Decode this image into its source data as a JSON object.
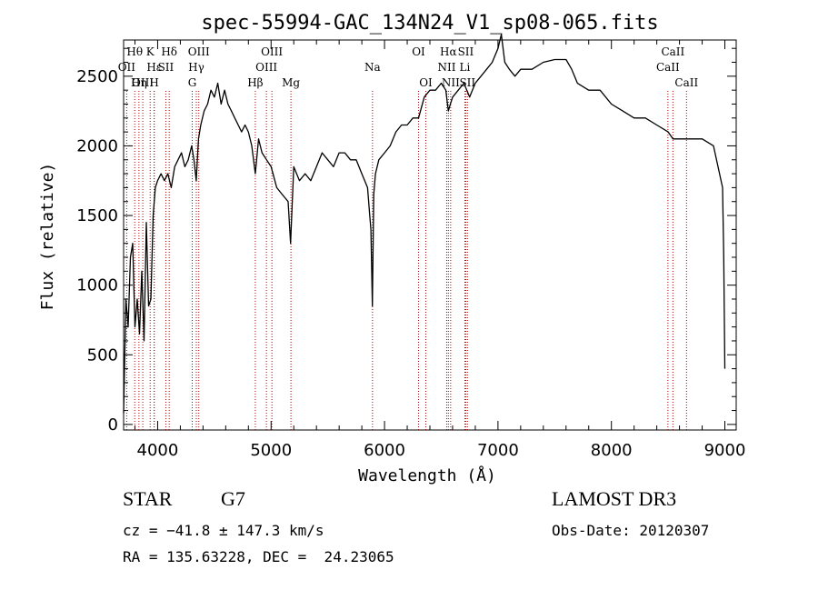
{
  "info": {
    "object_class": "STAR",
    "subclass": "G7",
    "survey": "LAMOST DR3",
    "redshift_line": "cz = −41.8 ± 147.3 km/s",
    "obs_date_line": "Obs-Date: 20120307",
    "coords_line": "RA = 135.63228, DEC =  24.23065"
  },
  "chart_data": {
    "type": "line",
    "title": "spec-55994-GAC_134N24_V1_sp08-065.fits",
    "xlabel": "Wavelength (Å)",
    "ylabel": "Flux (relative)",
    "xlim": [
      3700,
      9100
    ],
    "ylim": [
      -40,
      2760
    ],
    "x_ticks": [
      4000,
      5000,
      6000,
      7000,
      8000,
      9000
    ],
    "y_ticks": [
      0,
      500,
      1000,
      1500,
      2000,
      2500
    ],
    "line_color": "#000000",
    "marker_color": "#aa0000",
    "series": [
      {
        "x": [
          3700,
          3720,
          3740,
          3760,
          3780,
          3800,
          3820,
          3840,
          3860,
          3880,
          3900,
          3920,
          3940,
          3960,
          3980,
          4000,
          4030,
          4060,
          4090,
          4120,
          4150,
          4180,
          4210,
          4240,
          4270,
          4300,
          4320,
          4340,
          4360,
          4380,
          4410,
          4440,
          4470,
          4500,
          4530,
          4560,
          4590,
          4620,
          4650,
          4680,
          4710,
          4740,
          4770,
          4800,
          4830,
          4861,
          4890,
          4920,
          4960,
          5000,
          5050,
          5100,
          5150,
          5172,
          5200,
          5250,
          5300,
          5350,
          5400,
          5450,
          5500,
          5550,
          5600,
          5650,
          5700,
          5750,
          5800,
          5850,
          5870,
          5880,
          5893,
          5905,
          5920,
          5950,
          6000,
          6050,
          6100,
          6150,
          6200,
          6250,
          6300,
          6350,
          6400,
          6450,
          6500,
          6540,
          6563,
          6580,
          6600,
          6650,
          6700,
          6750,
          6800,
          6850,
          6900,
          6950,
          7000,
          7030,
          7060,
          7100,
          7150,
          7200,
          7300,
          7400,
          7500,
          7600,
          7650,
          7700,
          7800,
          7900,
          8000,
          8100,
          8200,
          8300,
          8400,
          8500,
          8542,
          8600,
          8662,
          8700,
          8800,
          8900,
          8980,
          8990,
          9000
        ],
        "values": [
          80,
          900,
          700,
          1200,
          1300,
          700,
          900,
          650,
          1100,
          600,
          1450,
          850,
          900,
          1500,
          1700,
          1750,
          1800,
          1750,
          1800,
          1700,
          1850,
          1900,
          1950,
          1850,
          1900,
          2000,
          1900,
          1750,
          2050,
          2150,
          2250,
          2300,
          2400,
          2350,
          2450,
          2300,
          2400,
          2300,
          2250,
          2200,
          2150,
          2100,
          2150,
          2100,
          2000,
          1800,
          2050,
          1950,
          1900,
          1850,
          1700,
          1650,
          1600,
          1300,
          1850,
          1750,
          1800,
          1750,
          1850,
          1950,
          1900,
          1850,
          1950,
          1950,
          1900,
          1900,
          1800,
          1700,
          1500,
          1400,
          850,
          1650,
          1800,
          1900,
          1950,
          2000,
          2100,
          2150,
          2150,
          2200,
          2200,
          2350,
          2400,
          2400,
          2450,
          2400,
          2250,
          2300,
          2350,
          2400,
          2450,
          2350,
          2450,
          2500,
          2550,
          2600,
          2700,
          2800,
          2600,
          2550,
          2500,
          2550,
          2550,
          2600,
          2620,
          2620,
          2550,
          2450,
          2400,
          2400,
          2300,
          2250,
          2200,
          2200,
          2150,
          2100,
          2050,
          2050,
          2050,
          2050,
          2050,
          2000,
          1700,
          1200,
          400
        ]
      }
    ],
    "lines": [
      {
        "name": "Hθ",
        "wave": 3798,
        "row": 0
      },
      {
        "name": "OII",
        "wave": 3727,
        "row": 1
      },
      {
        "name": "OIII",
        "wave": 3869,
        "row": 2
      },
      {
        "name": "Hη",
        "wave": 3835,
        "row": 2
      },
      {
        "name": "K",
        "wave": 3934,
        "row": 0
      },
      {
        "name": "Hε",
        "wave": 3970,
        "row": 1
      },
      {
        "name": "H",
        "wave": 3969,
        "row": 2
      },
      {
        "name": "Hδ",
        "wave": 4102,
        "row": 0
      },
      {
        "name": "SII",
        "wave": 4072,
        "row": 1
      },
      {
        "name": "OIII",
        "wave": 4363,
        "row": 0
      },
      {
        "name": "Hγ",
        "wave": 4341,
        "row": 1
      },
      {
        "name": "G",
        "wave": 4305,
        "row": 2
      },
      {
        "name": "Hβ",
        "wave": 4861,
        "row": 2
      },
      {
        "name": "OIII",
        "wave": 5007,
        "row": 0
      },
      {
        "name": "OIII",
        "wave": 4959,
        "row": 1
      },
      {
        "name": "Mg",
        "wave": 5175,
        "row": 2
      },
      {
        "name": "Na",
        "wave": 5894,
        "row": 1
      },
      {
        "name": "OI",
        "wave": 6300,
        "row": 0
      },
      {
        "name": "OI",
        "wave": 6364,
        "row": 2
      },
      {
        "name": "Hα",
        "wave": 6563,
        "row": 0
      },
      {
        "name": "SII",
        "wave": 6716,
        "row": 0
      },
      {
        "name": "NII",
        "wave": 6548,
        "row": 1
      },
      {
        "name": "Li",
        "wave": 6708,
        "row": 1
      },
      {
        "name": "NII",
        "wave": 6583,
        "row": 2
      },
      {
        "name": "SII",
        "wave": 6731,
        "row": 2
      },
      {
        "name": "CaII",
        "wave": 8542,
        "row": 0
      },
      {
        "name": "CaII",
        "wave": 8498,
        "row": 1
      },
      {
        "name": "CaII",
        "wave": 8662,
        "row": 2
      }
    ]
  }
}
